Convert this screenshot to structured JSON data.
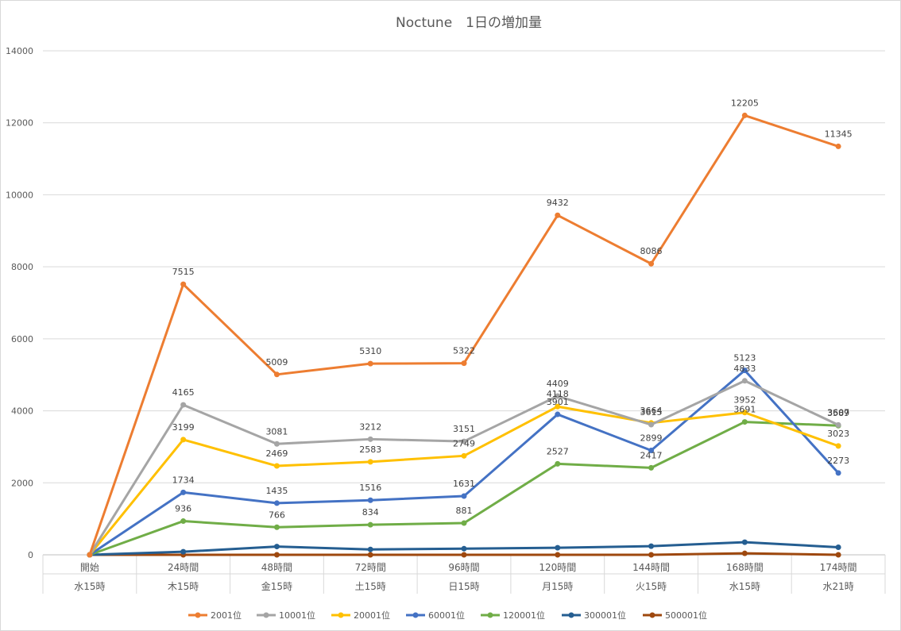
{
  "chart_data": {
    "type": "line",
    "title": "Noctune　1日の増加量",
    "xlabel": "",
    "ylabel": "",
    "ylim": [
      0,
      14000
    ],
    "yticks": [
      0,
      2000,
      4000,
      6000,
      8000,
      10000,
      12000,
      14000
    ],
    "grid": true,
    "legend_position": "bottom",
    "categories": [
      [
        "開始",
        "水15時"
      ],
      [
        "24時間",
        "木15時"
      ],
      [
        "48時間",
        "金15時"
      ],
      [
        "72時間",
        "土15時"
      ],
      [
        "96時間",
        "日15時"
      ],
      [
        "120時間",
        "月15時"
      ],
      [
        "144時間",
        "火15時"
      ],
      [
        "168時間",
        "水15時"
      ],
      [
        "174時間",
        "水21時"
      ]
    ],
    "series": [
      {
        "name": "2001位",
        "color": "#ed7d31",
        "values": [
          0,
          7515,
          5009,
          5310,
          5322,
          9432,
          8086,
          12205,
          11345
        ],
        "labels": [
          null,
          "7515",
          "5009",
          "5310",
          "5322",
          "9432",
          "8086",
          "12205",
          "11345"
        ]
      },
      {
        "name": "10001位",
        "color": "#a5a5a5",
        "values": [
          0,
          4165,
          3081,
          3212,
          3151,
          4409,
          3615,
          4833,
          3607
        ],
        "labels": [
          null,
          "4165",
          "3081",
          "3212",
          "3151",
          "4409",
          "3615",
          "4833",
          "3607"
        ]
      },
      {
        "name": "20001位",
        "color": "#ffc000",
        "values": [
          0,
          3199,
          2469,
          2583,
          2749,
          4118,
          3664,
          3952,
          3023
        ],
        "labels": [
          null,
          "3199",
          "2469",
          "2583",
          "2749",
          "4118",
          "3664",
          "3952",
          "3023"
        ]
      },
      {
        "name": "60001位",
        "color": "#4472c4",
        "values": [
          0,
          1734,
          1435,
          1516,
          1631,
          3901,
          2899,
          5123,
          2273
        ],
        "labels": [
          null,
          "1734",
          "1435",
          "1516",
          "1631",
          "3901",
          "2899",
          "5123",
          "2273"
        ]
      },
      {
        "name": "120001位",
        "color": "#70ad47",
        "values": [
          0,
          936,
          766,
          834,
          881,
          2527,
          2417,
          3691,
          3589
        ],
        "labels": [
          null,
          "936",
          "766",
          "834",
          "881",
          "2527",
          "2417",
          "3691",
          "3589"
        ]
      },
      {
        "name": "300001位",
        "color": "#255e91",
        "values": [
          0,
          85,
          230,
          150,
          170,
          195,
          240,
          350,
          210
        ],
        "labels": [
          null,
          null,
          null,
          null,
          null,
          null,
          null,
          null,
          null
        ]
      },
      {
        "name": "500001位",
        "color": "#9e480e",
        "values": [
          0,
          0,
          0,
          0,
          0,
          0,
          0,
          40,
          0
        ],
        "labels": [
          null,
          null,
          null,
          null,
          null,
          null,
          null,
          null,
          null
        ]
      }
    ]
  }
}
